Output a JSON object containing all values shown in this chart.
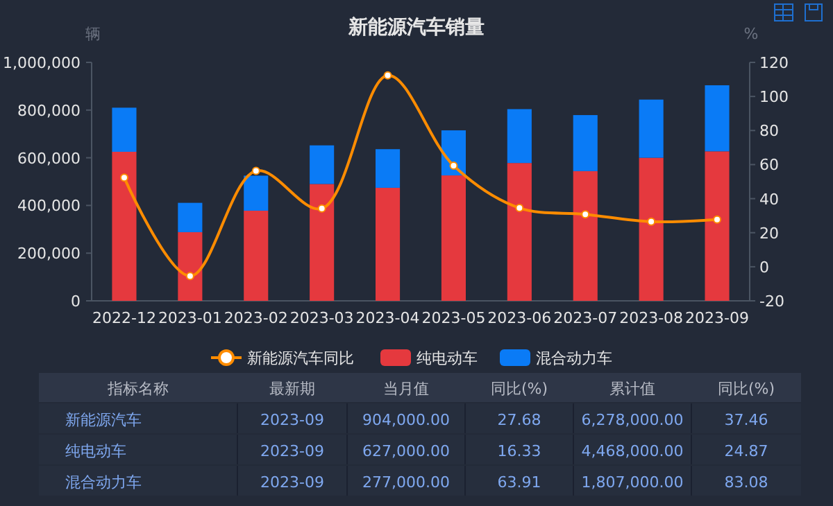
{
  "chart_data": {
    "type": "bar",
    "title": "新能源汽车销量",
    "ylabel": "辆",
    "y2label": "%",
    "categories": [
      "2022-12",
      "2023-01",
      "2023-02",
      "2023-03",
      "2023-04",
      "2023-05",
      "2023-06",
      "2023-07",
      "2023-08",
      "2023-09"
    ],
    "stacked": true,
    "ylim": [
      0,
      1000000
    ],
    "yticks": [
      {
        "value": 0,
        "label": "0"
      },
      {
        "value": 200000,
        "label": "200,000"
      },
      {
        "value": 400000,
        "label": "400,000"
      },
      {
        "value": 600000,
        "label": "600,000"
      },
      {
        "value": 800000,
        "label": "800,000"
      },
      {
        "value": 1000000,
        "label": "1,000,000"
      }
    ],
    "y2lim": [
      -20,
      120
    ],
    "y2ticks": [
      -20,
      0,
      20,
      40,
      60,
      80,
      100,
      120
    ],
    "series": [
      {
        "name": "新能源汽车同比",
        "type": "line",
        "axis": "y2",
        "color": "#ff8c00",
        "marker": "circle",
        "values": [
          52.3,
          -5.5,
          56.3,
          34.2,
          112.4,
          59.4,
          34.5,
          30.8,
          26.5,
          27.7
        ]
      },
      {
        "name": "纯电动车",
        "color": "#e5393e",
        "values": [
          625000,
          288000,
          378000,
          490000,
          474000,
          526000,
          578000,
          544000,
          600000,
          627000
        ]
      },
      {
        "name": "混合动力车",
        "color": "#0a7bf6",
        "values": [
          185000,
          123000,
          147000,
          162000,
          162000,
          189000,
          226000,
          235000,
          244000,
          277000
        ]
      }
    ],
    "legend": "bottom",
    "grid": false,
    "annotations": [
      "指标名称",
      "最新期",
      "当月值",
      "同比(%)",
      "累计值",
      "同比(%)",
      "新能源汽车",
      "2023-09",
      "904,000.00",
      "27.68",
      "6,278,000.00",
      "37.46",
      "纯电动车",
      "2023-09",
      "627,000.00",
      "16.33",
      "4,468,000.00",
      "24.87",
      "混合动力车",
      "2023-09",
      "277,000.00",
      "63.91",
      "1,807,000.00",
      "83.08"
    ]
  }
}
